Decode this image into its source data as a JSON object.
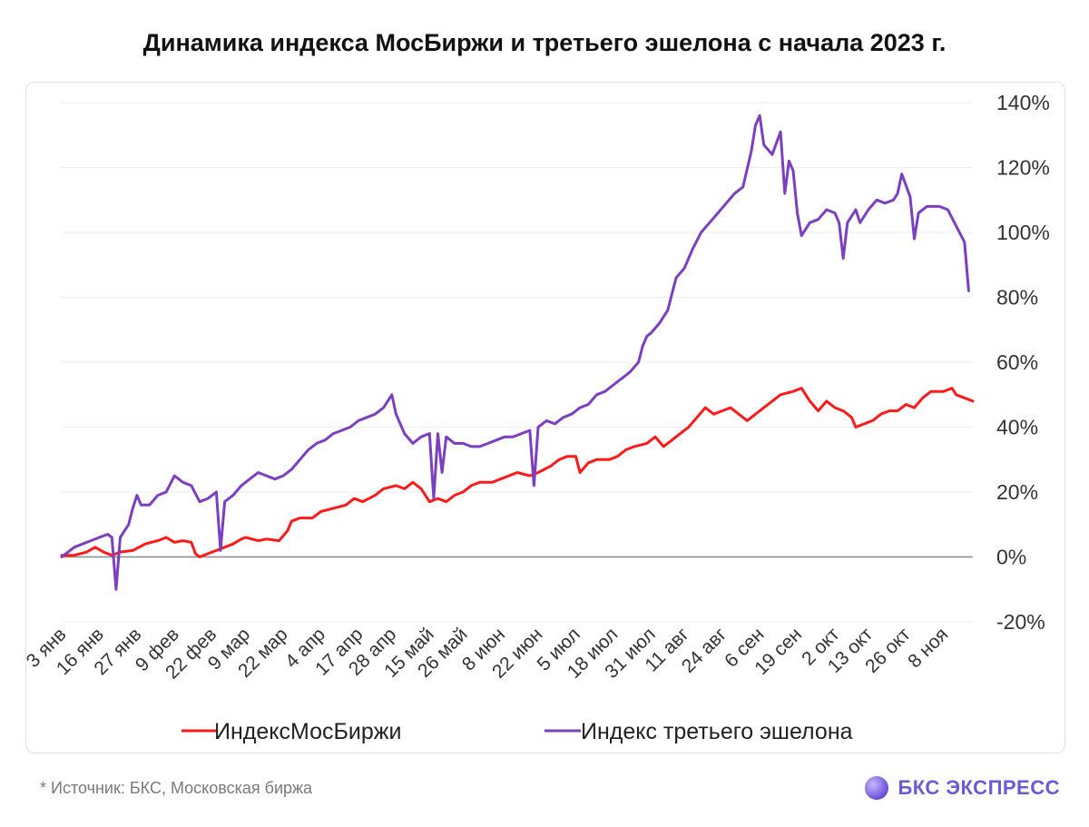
{
  "footer": {
    "source": "*  Источник: БКС, Московская биржа",
    "brand": "БКС ЭКСПРЕСС"
  },
  "colors": {
    "moex": "#ff1a1a",
    "third": "#7b3fbf",
    "grid": "#eeeeee",
    "zero": "#8a8a8a"
  },
  "chart_data": {
    "type": "line",
    "title": "Динамика индекса МосБиржи и третьего эшелона с начала 2023 г.",
    "xlabel": "",
    "ylabel": "",
    "ylim": [
      -20,
      140
    ],
    "yticks": [
      -20,
      0,
      20,
      40,
      60,
      80,
      100,
      120,
      140
    ],
    "ytick_labels": [
      "-20%",
      "0%",
      "20%",
      "40%",
      "60%",
      "80%",
      "100%",
      "120%",
      "140%"
    ],
    "grid": true,
    "x_count": 219,
    "x_ticks": [
      {
        "i": 0,
        "label": "3 янв"
      },
      {
        "i": 9,
        "label": "16 янв"
      },
      {
        "i": 18,
        "label": "27 янв"
      },
      {
        "i": 27,
        "label": "9 фев"
      },
      {
        "i": 36,
        "label": "22 фев"
      },
      {
        "i": 44,
        "label": "9 мар"
      },
      {
        "i": 53,
        "label": "22 мар"
      },
      {
        "i": 62,
        "label": "4 апр"
      },
      {
        "i": 71,
        "label": "17 апр"
      },
      {
        "i": 79,
        "label": "28 апр"
      },
      {
        "i": 88,
        "label": "15 май"
      },
      {
        "i": 96,
        "label": "26 май"
      },
      {
        "i": 105,
        "label": "8 июн"
      },
      {
        "i": 114,
        "label": "22 июн"
      },
      {
        "i": 123,
        "label": "5 июл"
      },
      {
        "i": 132,
        "label": "18 июл"
      },
      {
        "i": 141,
        "label": "31 июл"
      },
      {
        "i": 149,
        "label": "11 авг"
      },
      {
        "i": 158,
        "label": "24 авг"
      },
      {
        "i": 167,
        "label": "6 сен"
      },
      {
        "i": 176,
        "label": "19 сен"
      },
      {
        "i": 185,
        "label": "2 окт"
      },
      {
        "i": 193,
        "label": "13 окт"
      },
      {
        "i": 202,
        "label": "26 окт"
      },
      {
        "i": 211,
        "label": "8 ноя"
      }
    ],
    "legend_position": "bottom",
    "series": [
      {
        "name": "ИндексМосБиржи",
        "color": "#ff1a1a",
        "points": [
          [
            0,
            0.5
          ],
          [
            3,
            0.5
          ],
          [
            6,
            1.5
          ],
          [
            8,
            3
          ],
          [
            10,
            1.5
          ],
          [
            12,
            0.5
          ],
          [
            14,
            1.5
          ],
          [
            17,
            2
          ],
          [
            20,
            4
          ],
          [
            23,
            5
          ],
          [
            25,
            6
          ],
          [
            27,
            4.5
          ],
          [
            29,
            5
          ],
          [
            31,
            4.5
          ],
          [
            32,
            1
          ],
          [
            33,
            0
          ],
          [
            35,
            1
          ],
          [
            37,
            2
          ],
          [
            39,
            3
          ],
          [
            41,
            4
          ],
          [
            43,
            5.5
          ],
          [
            44,
            6
          ],
          [
            47,
            5
          ],
          [
            49,
            5.5
          ],
          [
            52,
            5
          ],
          [
            54,
            8
          ],
          [
            55,
            11
          ],
          [
            57,
            12
          ],
          [
            60,
            12
          ],
          [
            62,
            14
          ],
          [
            65,
            15
          ],
          [
            68,
            16
          ],
          [
            70,
            18
          ],
          [
            72,
            17
          ],
          [
            75,
            19
          ],
          [
            77,
            21
          ],
          [
            80,
            22
          ],
          [
            82,
            21
          ],
          [
            84,
            23
          ],
          [
            86,
            21
          ],
          [
            88,
            17
          ],
          [
            90,
            18
          ],
          [
            92,
            17
          ],
          [
            94,
            19
          ],
          [
            96,
            20
          ],
          [
            98,
            22
          ],
          [
            100,
            23
          ],
          [
            103,
            23
          ],
          [
            105,
            24
          ],
          [
            107,
            25
          ],
          [
            109,
            26
          ],
          [
            112,
            25
          ],
          [
            114,
            26
          ],
          [
            117,
            28
          ],
          [
            119,
            30
          ],
          [
            121,
            31
          ],
          [
            123,
            31
          ],
          [
            124,
            26
          ],
          [
            126,
            29
          ],
          [
            128,
            30
          ],
          [
            131,
            30
          ],
          [
            133,
            31
          ],
          [
            135,
            33
          ],
          [
            137,
            34
          ],
          [
            140,
            35
          ],
          [
            142,
            37
          ],
          [
            144,
            34
          ],
          [
            146,
            36
          ],
          [
            148,
            38
          ],
          [
            150,
            40
          ],
          [
            152,
            43
          ],
          [
            154,
            46
          ],
          [
            156,
            44
          ],
          [
            158,
            45
          ],
          [
            160,
            46
          ],
          [
            162,
            44
          ],
          [
            164,
            42
          ],
          [
            166,
            44
          ],
          [
            168,
            46
          ],
          [
            170,
            48
          ],
          [
            172,
            50
          ],
          [
            175,
            51
          ],
          [
            177,
            52
          ],
          [
            179,
            48
          ],
          [
            181,
            45
          ],
          [
            183,
            48
          ],
          [
            185,
            46
          ],
          [
            187,
            45
          ],
          [
            189,
            43
          ],
          [
            190,
            40
          ],
          [
            192,
            41
          ],
          [
            194,
            42
          ],
          [
            196,
            44
          ],
          [
            198,
            45
          ],
          [
            200,
            45
          ],
          [
            202,
            47
          ],
          [
            204,
            46
          ],
          [
            206,
            49
          ],
          [
            208,
            51
          ],
          [
            211,
            51
          ],
          [
            213,
            52
          ],
          [
            214,
            50
          ],
          [
            216,
            49
          ],
          [
            218,
            48
          ]
        ]
      },
      {
        "name": "Индекс третьего эшелона",
        "color": "#7b3fbf",
        "points": [
          [
            0,
            0
          ],
          [
            1,
            1
          ],
          [
            3,
            3
          ],
          [
            5,
            4
          ],
          [
            7,
            5
          ],
          [
            9,
            6
          ],
          [
            11,
            7
          ],
          [
            12,
            6
          ],
          [
            13,
            -10
          ],
          [
            14,
            6
          ],
          [
            16,
            10
          ],
          [
            17,
            15
          ],
          [
            18,
            19
          ],
          [
            19,
            16
          ],
          [
            21,
            16
          ],
          [
            23,
            19
          ],
          [
            25,
            20
          ],
          [
            27,
            25
          ],
          [
            29,
            23
          ],
          [
            31,
            22
          ],
          [
            33,
            17
          ],
          [
            35,
            18
          ],
          [
            37,
            20
          ],
          [
            38,
            2
          ],
          [
            39,
            17
          ],
          [
            41,
            19
          ],
          [
            43,
            22
          ],
          [
            45,
            24
          ],
          [
            47,
            26
          ],
          [
            49,
            25
          ],
          [
            51,
            24
          ],
          [
            53,
            25
          ],
          [
            55,
            27
          ],
          [
            57,
            30
          ],
          [
            59,
            33
          ],
          [
            61,
            35
          ],
          [
            63,
            36
          ],
          [
            65,
            38
          ],
          [
            67,
            39
          ],
          [
            69,
            40
          ],
          [
            71,
            42
          ],
          [
            73,
            43
          ],
          [
            75,
            44
          ],
          [
            77,
            46
          ],
          [
            79,
            50
          ],
          [
            80,
            44
          ],
          [
            82,
            38
          ],
          [
            84,
            35
          ],
          [
            86,
            37
          ],
          [
            88,
            38
          ],
          [
            89,
            18
          ],
          [
            90,
            38
          ],
          [
            91,
            26
          ],
          [
            92,
            37
          ],
          [
            94,
            35
          ],
          [
            96,
            35
          ],
          [
            98,
            34
          ],
          [
            100,
            34
          ],
          [
            102,
            35
          ],
          [
            104,
            36
          ],
          [
            106,
            37
          ],
          [
            108,
            37
          ],
          [
            110,
            38
          ],
          [
            112,
            39
          ],
          [
            113,
            22
          ],
          [
            114,
            40
          ],
          [
            116,
            42
          ],
          [
            118,
            41
          ],
          [
            120,
            43
          ],
          [
            122,
            44
          ],
          [
            124,
            46
          ],
          [
            126,
            47
          ],
          [
            128,
            50
          ],
          [
            130,
            51
          ],
          [
            132,
            53
          ],
          [
            134,
            55
          ],
          [
            136,
            57
          ],
          [
            138,
            60
          ],
          [
            139,
            65
          ],
          [
            140,
            68
          ],
          [
            141,
            69
          ],
          [
            143,
            72
          ],
          [
            145,
            76
          ],
          [
            147,
            86
          ],
          [
            149,
            89
          ],
          [
            151,
            95
          ],
          [
            153,
            100
          ],
          [
            155,
            103
          ],
          [
            157,
            106
          ],
          [
            159,
            109
          ],
          [
            161,
            112
          ],
          [
            163,
            114
          ],
          [
            165,
            125
          ],
          [
            166,
            133
          ],
          [
            167,
            136
          ],
          [
            168,
            127
          ],
          [
            170,
            124
          ],
          [
            172,
            131
          ],
          [
            173,
            112
          ],
          [
            174,
            122
          ],
          [
            175,
            119
          ],
          [
            176,
            106
          ],
          [
            177,
            99
          ],
          [
            179,
            103
          ],
          [
            181,
            104
          ],
          [
            183,
            107
          ],
          [
            185,
            106
          ],
          [
            186,
            103
          ],
          [
            187,
            92
          ],
          [
            188,
            103
          ],
          [
            190,
            107
          ],
          [
            191,
            103
          ],
          [
            193,
            107
          ],
          [
            195,
            110
          ],
          [
            197,
            109
          ],
          [
            199,
            110
          ],
          [
            200,
            112
          ],
          [
            201,
            118
          ],
          [
            203,
            111
          ],
          [
            204,
            98
          ],
          [
            205,
            106
          ],
          [
            207,
            108
          ],
          [
            209,
            108
          ],
          [
            210,
            108
          ],
          [
            212,
            107
          ],
          [
            214,
            102
          ],
          [
            216,
            97
          ],
          [
            217,
            82
          ]
        ]
      }
    ]
  }
}
